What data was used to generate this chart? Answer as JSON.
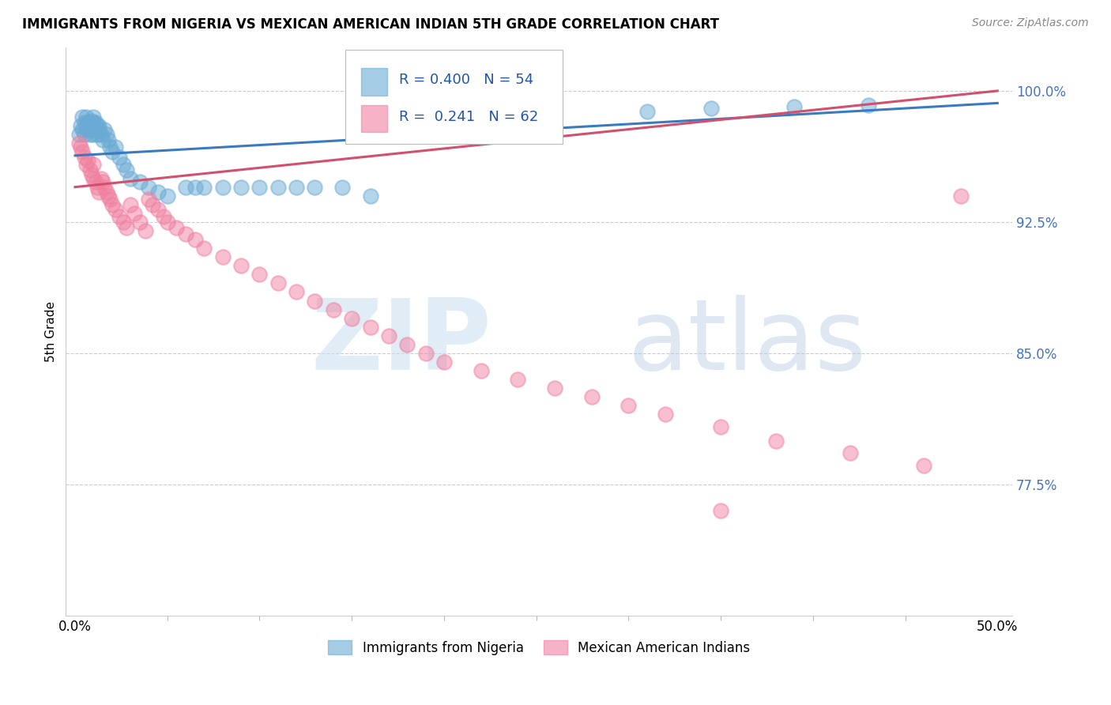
{
  "title": "IMMIGRANTS FROM NIGERIA VS MEXICAN AMERICAN INDIAN 5TH GRADE CORRELATION CHART",
  "source": "Source: ZipAtlas.com",
  "ylabel": "5th Grade",
  "ytick_labels": [
    "100.0%",
    "92.5%",
    "85.0%",
    "77.5%"
  ],
  "ytick_values": [
    1.0,
    0.925,
    0.85,
    0.775
  ],
  "xlim": [
    0.0,
    0.5
  ],
  "ylim": [
    0.7,
    1.025
  ],
  "blue_R": 0.4,
  "blue_N": 54,
  "pink_R": 0.241,
  "pink_N": 62,
  "blue_color": "#6aaad4",
  "pink_color": "#f080a0",
  "trend_blue": "#3a7abf",
  "trend_pink": "#d44f6e",
  "blue_x": [
    0.002,
    0.003,
    0.004,
    0.004,
    0.005,
    0.005,
    0.006,
    0.006,
    0.007,
    0.007,
    0.008,
    0.008,
    0.009,
    0.009,
    0.01,
    0.01,
    0.01,
    0.011,
    0.011,
    0.012,
    0.012,
    0.013,
    0.013,
    0.014,
    0.015,
    0.016,
    0.017,
    0.018,
    0.019,
    0.02,
    0.022,
    0.024,
    0.026,
    0.028,
    0.03,
    0.035,
    0.04,
    0.045,
    0.05,
    0.06,
    0.065,
    0.07,
    0.08,
    0.09,
    0.1,
    0.11,
    0.12,
    0.13,
    0.145,
    0.16,
    0.31,
    0.345,
    0.39,
    0.43
  ],
  "blue_y": [
    0.975,
    0.98,
    0.978,
    0.985,
    0.982,
    0.975,
    0.98,
    0.985,
    0.982,
    0.978,
    0.98,
    0.975,
    0.983,
    0.978,
    0.982,
    0.985,
    0.975,
    0.978,
    0.982,
    0.98,
    0.975,
    0.98,
    0.978,
    0.975,
    0.972,
    0.978,
    0.975,
    0.972,
    0.968,
    0.965,
    0.968,
    0.962,
    0.958,
    0.955,
    0.95,
    0.948,
    0.945,
    0.942,
    0.94,
    0.945,
    0.945,
    0.945,
    0.945,
    0.945,
    0.945,
    0.945,
    0.945,
    0.945,
    0.945,
    0.94,
    0.988,
    0.99,
    0.991,
    0.992
  ],
  "pink_x": [
    0.002,
    0.003,
    0.004,
    0.005,
    0.006,
    0.007,
    0.008,
    0.009,
    0.01,
    0.01,
    0.011,
    0.012,
    0.013,
    0.014,
    0.015,
    0.016,
    0.017,
    0.018,
    0.019,
    0.02,
    0.022,
    0.024,
    0.026,
    0.028,
    0.03,
    0.032,
    0.035,
    0.038,
    0.04,
    0.042,
    0.045,
    0.048,
    0.05,
    0.055,
    0.06,
    0.065,
    0.07,
    0.08,
    0.09,
    0.1,
    0.11,
    0.12,
    0.13,
    0.14,
    0.15,
    0.16,
    0.17,
    0.18,
    0.19,
    0.2,
    0.22,
    0.24,
    0.26,
    0.28,
    0.3,
    0.32,
    0.35,
    0.38,
    0.42,
    0.46,
    0.48,
    0.35
  ],
  "pink_y": [
    0.97,
    0.968,
    0.965,
    0.962,
    0.958,
    0.96,
    0.955,
    0.952,
    0.958,
    0.95,
    0.948,
    0.945,
    0.942,
    0.95,
    0.948,
    0.945,
    0.942,
    0.94,
    0.938,
    0.935,
    0.932,
    0.928,
    0.925,
    0.922,
    0.935,
    0.93,
    0.925,
    0.92,
    0.938,
    0.935,
    0.932,
    0.928,
    0.925,
    0.922,
    0.918,
    0.915,
    0.91,
    0.905,
    0.9,
    0.895,
    0.89,
    0.885,
    0.88,
    0.875,
    0.87,
    0.865,
    0.86,
    0.855,
    0.85,
    0.845,
    0.84,
    0.835,
    0.83,
    0.825,
    0.82,
    0.815,
    0.808,
    0.8,
    0.793,
    0.786,
    0.94,
    0.76
  ]
}
